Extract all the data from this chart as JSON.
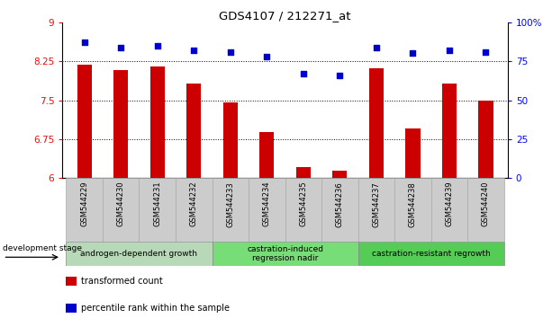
{
  "title": "GDS4107 / 212271_at",
  "categories": [
    "GSM544229",
    "GSM544230",
    "GSM544231",
    "GSM544232",
    "GSM544233",
    "GSM544234",
    "GSM544235",
    "GSM544236",
    "GSM544237",
    "GSM544238",
    "GSM544239",
    "GSM544240"
  ],
  "bar_values": [
    8.18,
    8.08,
    8.15,
    7.82,
    7.45,
    6.88,
    6.22,
    6.14,
    8.12,
    6.95,
    7.82,
    7.5
  ],
  "dot_values": [
    87,
    84,
    85,
    82,
    81,
    78,
    67,
    66,
    84,
    80,
    82,
    81
  ],
  "ylim_left": [
    6,
    9
  ],
  "ylim_right": [
    0,
    100
  ],
  "yticks_left": [
    6,
    6.75,
    7.5,
    8.25,
    9
  ],
  "yticks_right": [
    0,
    25,
    50,
    75,
    100
  ],
  "ytick_labels_left": [
    "6",
    "6.75",
    "7.5",
    "8.25",
    "9"
  ],
  "ytick_labels_right": [
    "0",
    "25",
    "50",
    "75",
    "100%"
  ],
  "hlines": [
    6.75,
    7.5,
    8.25
  ],
  "bar_color": "#cc0000",
  "dot_color": "#0000cc",
  "groups": [
    {
      "label": "androgen-dependent growth",
      "start": 0,
      "end": 3,
      "color": "#b8d9b8"
    },
    {
      "label": "castration-induced\nregression nadir",
      "start": 4,
      "end": 7,
      "color": "#77dd77"
    },
    {
      "label": "castration-resistant regrowth",
      "start": 8,
      "end": 11,
      "color": "#55cc55"
    }
  ],
  "dev_stage_label": "development stage",
  "legend_items": [
    {
      "label": "transformed count",
      "color": "#cc0000"
    },
    {
      "label": "percentile rank within the sample",
      "color": "#0000cc"
    }
  ],
  "bar_width": 0.4
}
